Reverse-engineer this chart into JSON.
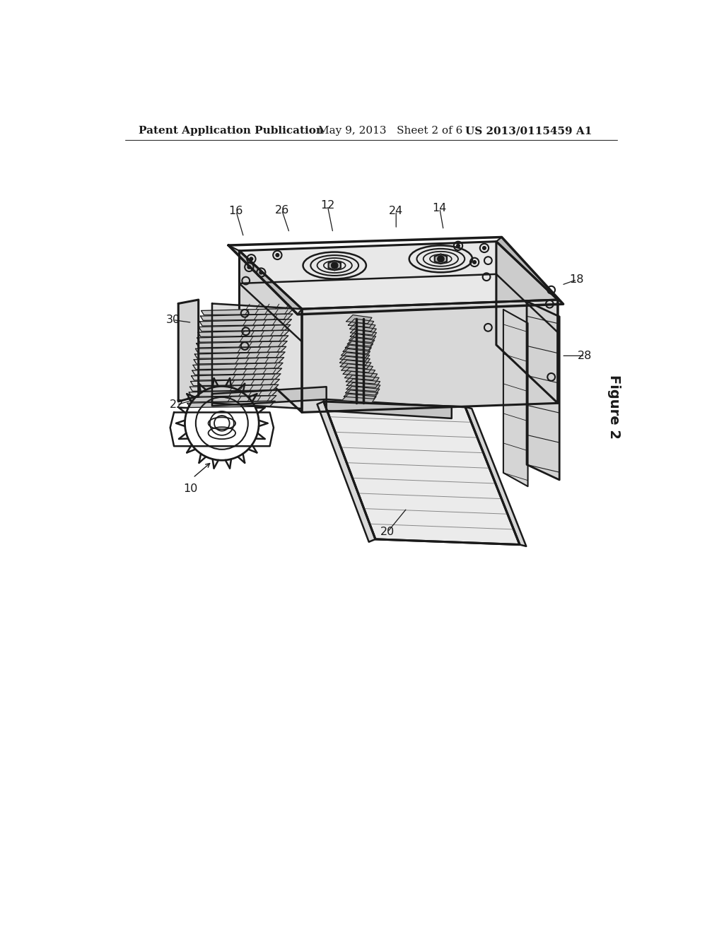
{
  "background_color": "#ffffff",
  "header_left": "Patent Application Publication",
  "header_mid": "May 9, 2013   Sheet 2 of 6",
  "header_right": "US 2013/0115459 A1",
  "figure_label": "Figure 2",
  "line_color": "#1a1a1a",
  "text_color": "#1a1a1a",
  "header_fontsize": 11,
  "label_fontsize": 11,
  "figure_label_fontsize": 14
}
